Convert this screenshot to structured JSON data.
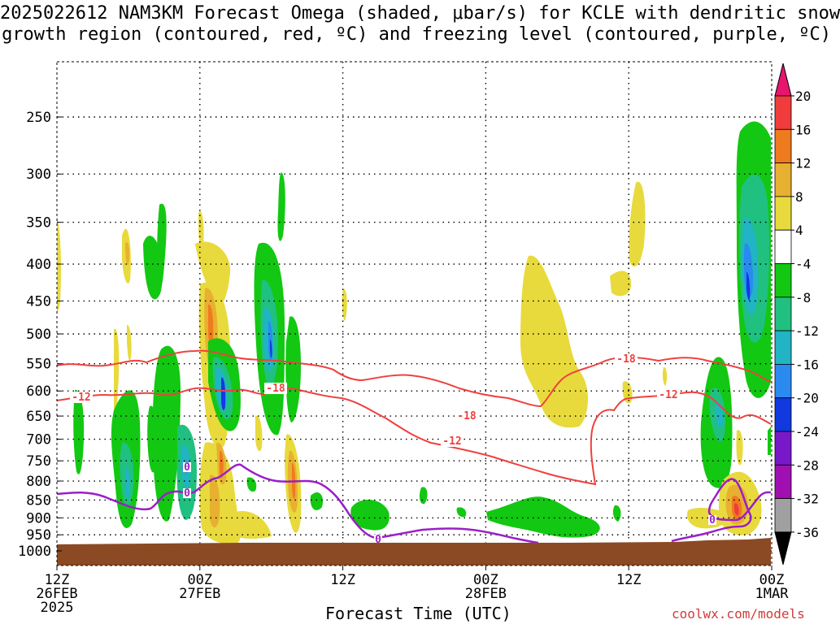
{
  "title_line1": "2025022612 NAM3KM Forecast Omega (shaded, μbar/s) for KCLE with dendritic snow",
  "title_line2": "growth region (contoured, red, ºC) and freezing level (contoured, purple, ºC)",
  "xlabel": "Forecast Time (UTC)",
  "credit": "coolwx.com/models",
  "colors": {
    "temp_contour": "#f04040",
    "freezing_contour": "#9a1fc8",
    "ground": "#8b4a24"
  },
  "chart_data": {
    "type": "heatmap",
    "y_axis": {
      "label": "",
      "scale": "log-pressure",
      "ticks": [
        250,
        300,
        350,
        400,
        450,
        500,
        550,
        600,
        650,
        700,
        750,
        800,
        850,
        900,
        950,
        1000
      ],
      "range": [
        1000,
        200
      ]
    },
    "x_axis": {
      "ticks": [
        {
          "line1": "12Z",
          "line2": "26FEB",
          "line3": "2025"
        },
        {
          "line1": "00Z",
          "line2": "27FEB",
          "line3": ""
        },
        {
          "line1": "12Z",
          "line2": "",
          "line3": ""
        },
        {
          "line1": "00Z",
          "line2": "28FEB",
          "line3": ""
        },
        {
          "line1": "12Z",
          "line2": "",
          "line3": ""
        },
        {
          "line1": "00Z",
          "line2": "1MAR",
          "line3": ""
        }
      ]
    },
    "colorbar": {
      "labels": [
        "20",
        "16",
        "12",
        "8",
        "4",
        "-4",
        "-8",
        "-12",
        "-16",
        "-20",
        "-24",
        "-28",
        "-32",
        "-36"
      ],
      "colors": [
        "#e8156e",
        "#f03c3c",
        "#f07a1e",
        "#e8b030",
        "#e8da3c",
        "#ffffff",
        "#12c812",
        "#20c080",
        "#20b4c4",
        "#2a8af0",
        "#1238e0",
        "#7818c8",
        "#a010b0",
        "#a0a0a0",
        "#000000"
      ]
    },
    "contour_labels": {
      "temp": [
        "-12",
        "-18",
        "-18",
        "-12",
        "-12",
        "-18",
        "-12"
      ],
      "freezing": [
        "0",
        "0",
        "0",
        "0"
      ]
    }
  }
}
